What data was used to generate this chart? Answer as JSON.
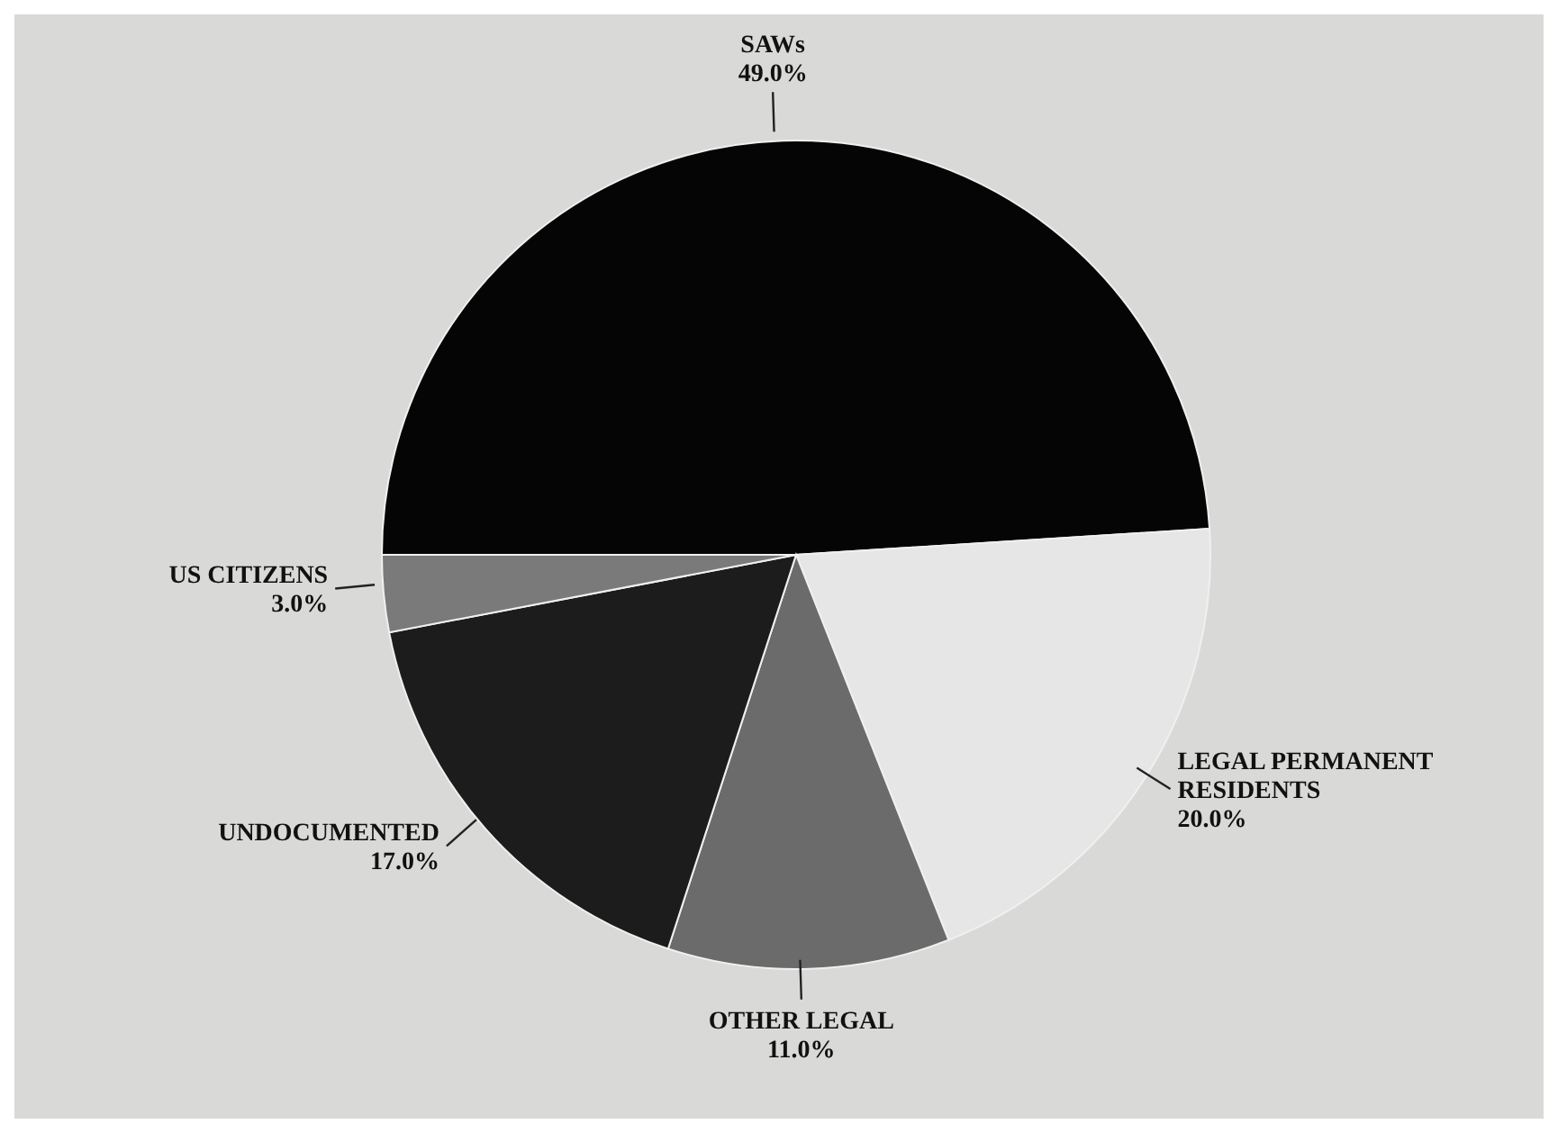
{
  "chart_data": {
    "type": "pie",
    "categories": [
      "SAWs",
      "LEGAL PERMANENT RESIDENTS",
      "OTHER LEGAL",
      "UNDOCUMENTED",
      "US CITIZENS"
    ],
    "values": [
      49.0,
      20.0,
      11.0,
      17.0,
      3.0
    ],
    "colors": [
      "#050505",
      "#e6e6e6",
      "#6b6b6b",
      "#1c1c1c",
      "#7a7a7a"
    ],
    "value_labels": [
      "49.0%",
      "20.0%",
      "11.0%",
      "17.0%",
      "3.0%"
    ]
  }
}
